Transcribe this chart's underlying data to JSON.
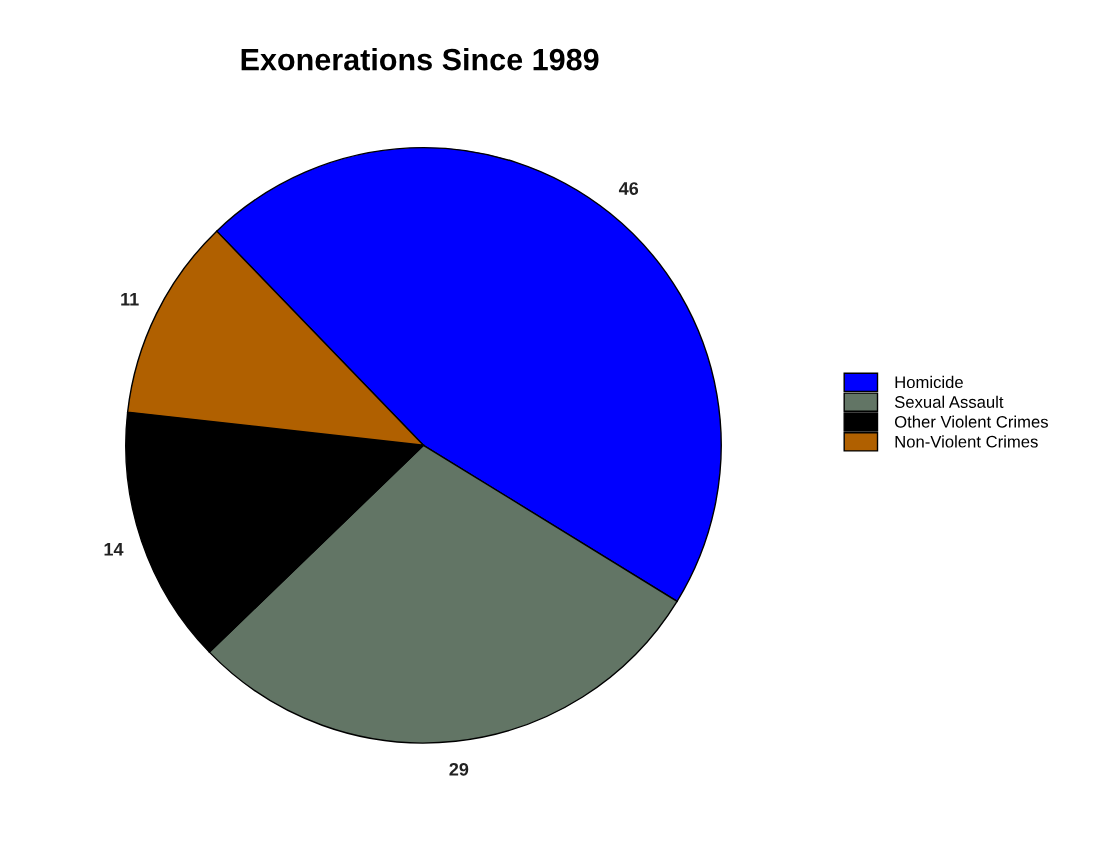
{
  "chart_data": {
    "type": "pie",
    "title": "Exonerations Since 1989",
    "categories": [
      "Homicide",
      "Sexual Assault",
      "Other Violent Crimes",
      "Non-Violent Crimes"
    ],
    "values": [
      46,
      29,
      14,
      11
    ],
    "colors": [
      "#0000ff",
      "#627565",
      "#000000",
      "#b06000"
    ],
    "data_labels": true,
    "legend": "right"
  }
}
